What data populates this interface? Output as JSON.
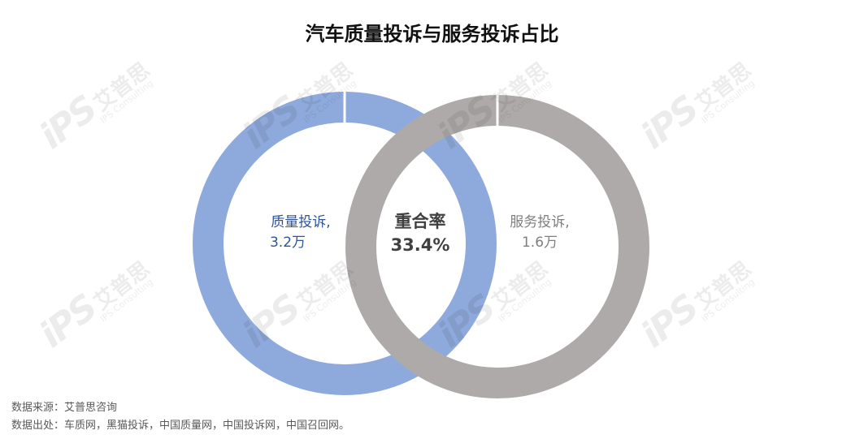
{
  "title": "汽车质量投诉与服务投诉占比",
  "chart_data": {
    "type": "venn-donut",
    "title": "汽车质量投诉与服务投诉占比",
    "series": [
      {
        "name": "质量投诉",
        "value_label": "3.2万",
        "value": 3.2,
        "unit": "万",
        "color": "#8EA9DB"
      },
      {
        "name": "服务投诉",
        "value_label": "1.6万",
        "value": 1.6,
        "unit": "万",
        "color": "#AEAAAA"
      }
    ],
    "overlap": {
      "label": "重合率",
      "value_label": "33.4%",
      "value": 33.4
    }
  },
  "labels": {
    "quality": {
      "name": "质量投诉,",
      "value": "3.2万",
      "color": "#2F5597"
    },
    "service": {
      "name": "服务投诉,",
      "value": "1.6万",
      "color": "#7F7F7F"
    },
    "overlap": {
      "name": "重合率",
      "value": "33.4%",
      "color": "#404040"
    }
  },
  "watermark": {
    "logo": "iPS",
    "cn": "艾普思",
    "en": "IPS Consulting"
  },
  "footer": {
    "source": "数据来源：艾普思咨询",
    "data_source": "数据出处：车质网，黑猫投诉，中国质量网，中国投诉网，中国召回网。"
  }
}
